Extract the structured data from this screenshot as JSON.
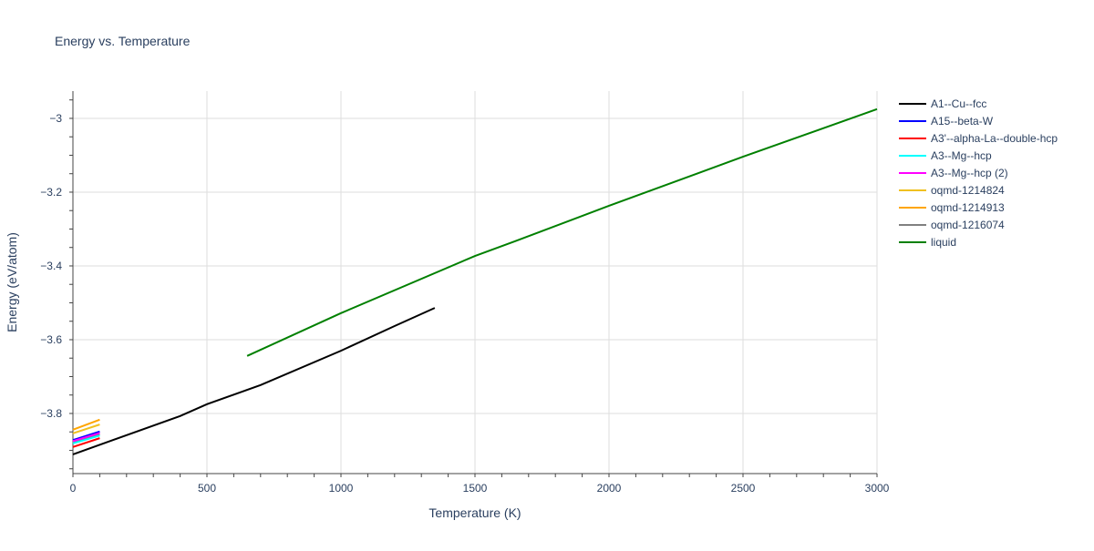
{
  "chart_data": {
    "type": "line",
    "title": "Energy vs. Temperature",
    "xlabel": "Temperature (K)",
    "ylabel": "Energy (eV/atom)",
    "xlim": [
      0,
      3000
    ],
    "ylim": [
      -3.963,
      -2.926
    ],
    "xticks": [
      0,
      500,
      1000,
      1500,
      2000,
      2500,
      3000
    ],
    "xtick_labels": [
      "0",
      "500",
      "1000",
      "1500",
      "2000",
      "2500",
      "3000"
    ],
    "yticks": [
      -3.8,
      -3.6,
      -3.4,
      -3.2,
      -3.0
    ],
    "ytick_labels": [
      "−3.8",
      "−3.6",
      "−3.4",
      "−3.2",
      "−3"
    ],
    "grid": true,
    "legend_position": "right",
    "series": [
      {
        "name": "A1--Cu--fcc",
        "color": "#000000",
        "x": [
          0,
          400,
          500,
          700,
          1000,
          1200,
          1350
        ],
        "y": [
          -3.911,
          -3.807,
          -3.775,
          -3.723,
          -3.63,
          -3.563,
          -3.514
        ]
      },
      {
        "name": "A15--beta-W",
        "color": "#0000ff",
        "x": [
          0,
          100
        ],
        "y": [
          -3.872,
          -3.849
        ]
      },
      {
        "name": "A3'--alpha-La--double-hcp",
        "color": "#ff0000",
        "x": [
          0,
          100
        ],
        "y": [
          -3.891,
          -3.867
        ]
      },
      {
        "name": "A3--Mg--hcp",
        "color": "#00ffff",
        "x": [
          0,
          100
        ],
        "y": [
          -3.881,
          -3.86
        ]
      },
      {
        "name": "A3--Mg--hcp (2)",
        "color": "#ff00ff",
        "x": [
          0,
          100
        ],
        "y": [
          -3.875,
          -3.853
        ]
      },
      {
        "name": "oqmd-1214824",
        "color": "#f0c020",
        "x": [
          0,
          100
        ],
        "y": [
          -3.854,
          -3.83
        ]
      },
      {
        "name": "oqmd-1214913",
        "color": "#ffa500",
        "x": [
          0,
          100
        ],
        "y": [
          -3.844,
          -3.817
        ]
      },
      {
        "name": "oqmd-1216074",
        "color": "#808080",
        "x": [
          0,
          100
        ],
        "y": [
          -3.878,
          -3.856
        ]
      },
      {
        "name": "liquid",
        "color": "#008000",
        "x": [
          650,
          1000,
          1500,
          1650,
          2000,
          2500,
          3000
        ],
        "y": [
          -3.644,
          -3.528,
          -3.373,
          -3.333,
          -3.237,
          -3.104,
          -2.975
        ]
      }
    ]
  }
}
